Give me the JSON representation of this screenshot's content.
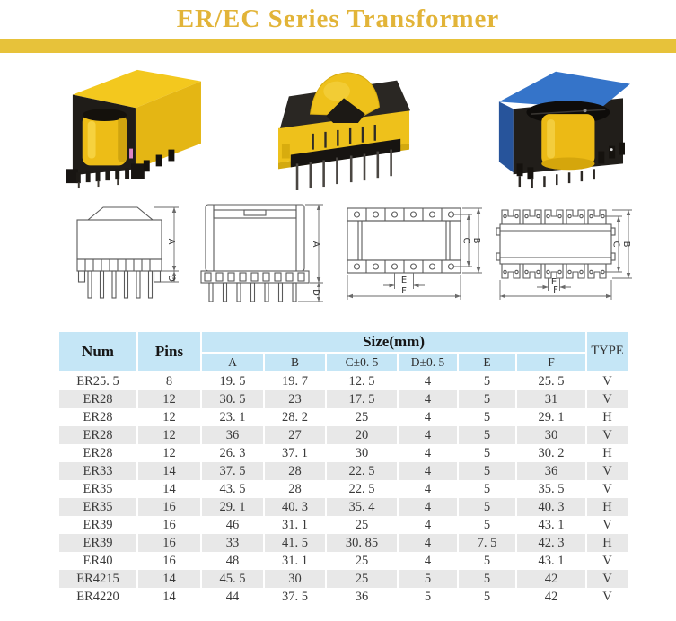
{
  "page": {
    "title": "ER/EC Series Transformer"
  },
  "colors": {
    "title_gold": "#E2B438",
    "bar_gold": "#E7C23A",
    "table_header_blue": "#C5E6F6",
    "row_stripe_gray": "#E8E8E8",
    "photo_yellow": "#EEC11B",
    "photo_blue": "#3574C9",
    "photo_black": "#211E1A"
  },
  "photos": [
    {
      "name": "yellow-vertical-er-transformer-photo"
    },
    {
      "name": "horizontal-er-transformer-photo"
    },
    {
      "name": "blue-vertical-er-transformer-photo"
    }
  ],
  "drawings": [
    {
      "name": "front-view-vertical-type",
      "dims": [
        "A",
        "D"
      ]
    },
    {
      "name": "front-view-vertical-type-2",
      "dims": [
        "A",
        "D"
      ]
    },
    {
      "name": "top-view-round-pads",
      "dims": [
        "C",
        "B",
        "E",
        "F"
      ]
    },
    {
      "name": "top-view-castellated",
      "dims": [
        "C",
        "B",
        "E",
        "F"
      ]
    }
  ],
  "table": {
    "col_num": "Num",
    "col_pins": "Pins",
    "col_size_group": "Size(mm)",
    "col_type": "TYPE",
    "size_subcols": [
      "A",
      "B",
      "C±0. 5",
      "D±0. 5",
      "E",
      "F"
    ],
    "rows": [
      [
        "ER25. 5",
        "8",
        "19. 5",
        "19. 7",
        "12. 5",
        "4",
        "5",
        "25. 5",
        "V"
      ],
      [
        "ER28",
        "12",
        "30. 5",
        "23",
        "17. 5",
        "4",
        "5",
        "31",
        "V"
      ],
      [
        "ER28",
        "12",
        "23. 1",
        "28. 2",
        "25",
        "4",
        "5",
        "29. 1",
        "H"
      ],
      [
        "ER28",
        "12",
        "36",
        "27",
        "20",
        "4",
        "5",
        "30",
        "V"
      ],
      [
        "ER28",
        "12",
        "26. 3",
        "37. 1",
        "30",
        "4",
        "5",
        "30. 2",
        "H"
      ],
      [
        "ER33",
        "14",
        "37. 5",
        "28",
        "22. 5",
        "4",
        "5",
        "36",
        "V"
      ],
      [
        "ER35",
        "14",
        "43. 5",
        "28",
        "22. 5",
        "4",
        "5",
        "35. 5",
        "V"
      ],
      [
        "ER35",
        "16",
        "29. 1",
        "40. 3",
        "35. 4",
        "4",
        "5",
        "40. 3",
        "H"
      ],
      [
        "ER39",
        "16",
        "46",
        "31. 1",
        "25",
        "4",
        "5",
        "43. 1",
        "V"
      ],
      [
        "ER39",
        "16",
        "33",
        "41. 5",
        "30. 85",
        "4",
        "7. 5",
        "42. 3",
        "H"
      ],
      [
        "ER40",
        "16",
        "48",
        "31. 1",
        "25",
        "4",
        "5",
        "43. 1",
        "V"
      ],
      [
        "ER4215",
        "14",
        "45. 5",
        "30",
        "25",
        "5",
        "5",
        "42",
        "V"
      ],
      [
        "ER4220",
        "14",
        "44",
        "37. 5",
        "36",
        "5",
        "5",
        "42",
        "V"
      ]
    ]
  }
}
